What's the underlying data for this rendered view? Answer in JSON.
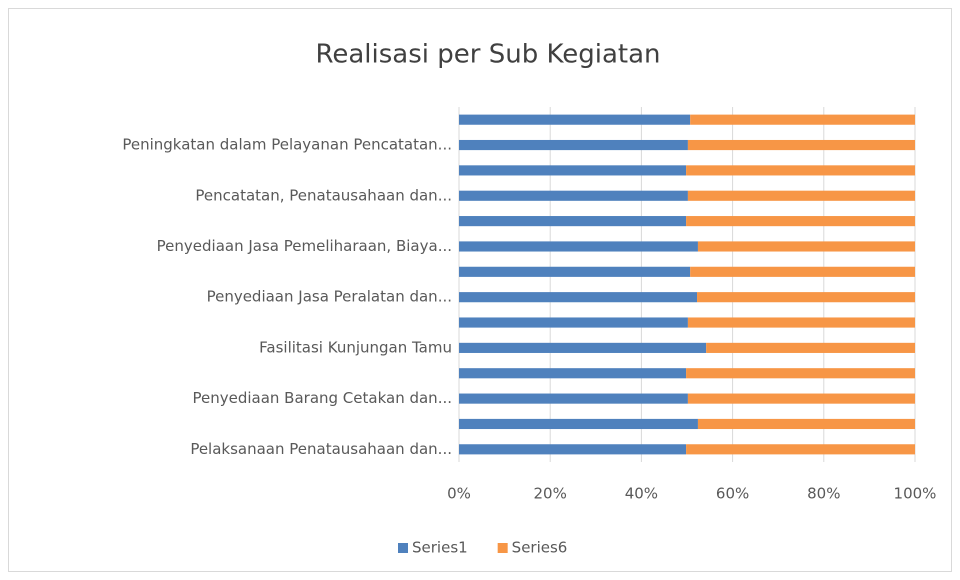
{
  "chart_data": {
    "type": "stacked-bar-horizontal",
    "title": "Realisasi per Sub Kegiatan",
    "categories": [
      "Pelaksanaan Penatausahaan dan...",
      null,
      "Penyediaan Barang Cetakan dan...",
      null,
      "Fasilitasi Kunjungan Tamu",
      null,
      "Penyediaan Jasa Peralatan dan...",
      null,
      "Penyediaan Jasa Pemeliharaan, Biaya...",
      null,
      "Pencatatan, Penatausahaan dan...",
      null,
      "Peningkatan dalam Pelayanan Pencatatan...",
      null
    ],
    "series": [
      {
        "name": "Series1",
        "color": "#4f81bd",
        "values": [
          49.8,
          52.4,
          50.2,
          49.8,
          54.2,
          50.2,
          52.2,
          50.7,
          52.4,
          49.8,
          50.2,
          49.8,
          50.2,
          50.7
        ]
      },
      {
        "name": "Series6",
        "color": "#f79646",
        "values": [
          50.2,
          47.6,
          49.8,
          50.2,
          45.8,
          49.8,
          47.8,
          49.3,
          47.6,
          50.2,
          49.8,
          50.2,
          49.8,
          49.3
        ]
      }
    ],
    "xlim": [
      0,
      100
    ],
    "xticks": [
      {
        "value": 0,
        "label": "0%"
      },
      {
        "value": 20,
        "label": "20%"
      },
      {
        "value": 40,
        "label": "40%"
      },
      {
        "value": 60,
        "label": "60%"
      },
      {
        "value": 80,
        "label": "80%"
      },
      {
        "value": 100,
        "label": "100%"
      }
    ],
    "grid": true,
    "legend": "bottom"
  }
}
